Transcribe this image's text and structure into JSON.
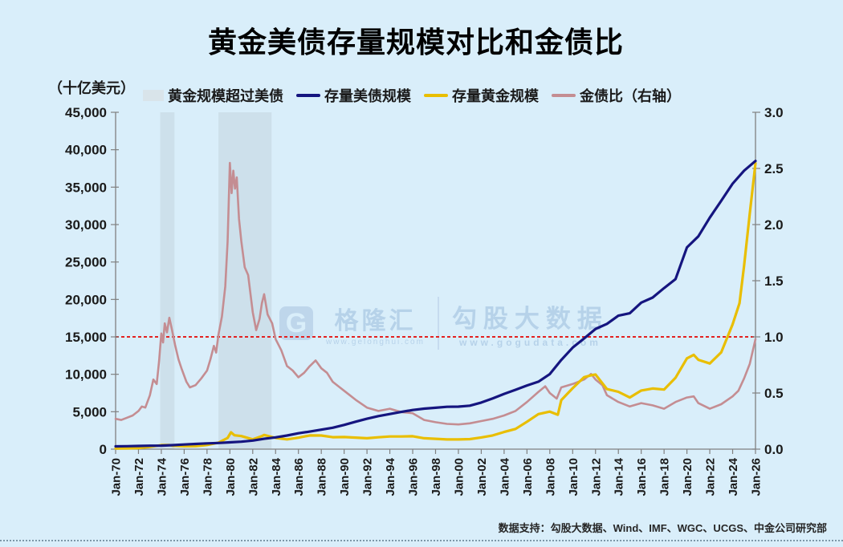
{
  "page": {
    "background": "#d9eefa",
    "title": "黄金美债存量规模对比和金债比",
    "footer": "数据支持：勾股大数据、Wind、IMF、WGC、UCGS、中金公司研究部"
  },
  "watermark": {
    "logo_letter": "G",
    "brand": "格隆汇",
    "brand_url": "www.gelonghui.com",
    "site": "勾股大数据",
    "site_url": "www.gogudata.com"
  },
  "chart_data": {
    "type": "line",
    "title": "黄金美债存量规模对比和金债比",
    "unit_label": "（十亿美元）",
    "x_range": [
      1970,
      2026
    ],
    "x_tick_step_years": 2,
    "x_tick_labels": [
      "Jan-70",
      "Jan-72",
      "Jan-74",
      "Jan-76",
      "Jan-78",
      "Jan-80",
      "Jan-82",
      "Jan-84",
      "Jan-86",
      "Jan-88",
      "Jan-90",
      "Jan-92",
      "Jan-94",
      "Jan-96",
      "Jan-98",
      "Jan-00",
      "Jan-02",
      "Jan-04",
      "Jan-06",
      "Jan-08",
      "Jan-10",
      "Jan-12",
      "Jan-14",
      "Jan-16",
      "Jan-18",
      "Jan-20",
      "Jan-22",
      "Jan-24",
      "Jan-26"
    ],
    "y_left": {
      "min": 0,
      "max": 45000,
      "step": 5000,
      "tick_labels": [
        "0",
        "5,000",
        "10,000",
        "15,000",
        "20,000",
        "25,000",
        "30,000",
        "35,000",
        "40,000",
        "45,000"
      ]
    },
    "y_right": {
      "min": 0,
      "max": 3.0,
      "step": 0.5,
      "tick_labels": [
        "0.0",
        "0.5",
        "1.0",
        "1.5",
        "2.0",
        "2.5",
        "3.0"
      ]
    },
    "grid": false,
    "legend_position": "top",
    "axis_color": "#808080",
    "tick_label_color": "#1a1a1a",
    "reference_line": {
      "axis": "right",
      "value": 1.0,
      "color": "#e32121",
      "style": "dashed"
    },
    "shaded_regions": {
      "label": "黄金规模超过美债",
      "color": "#c3d5df",
      "opacity": 0.55,
      "ranges": [
        [
          1973.9,
          1975.15
        ],
        [
          1979.0,
          1983.65
        ]
      ]
    },
    "legend": [
      {
        "label": "黄金规模超过美债",
        "type": "box",
        "color": "#d9e4ea"
      },
      {
        "label": "存量美债规模",
        "type": "line",
        "color": "#15157f"
      },
      {
        "label": "存量黄金规模",
        "type": "line",
        "color": "#e9be00"
      },
      {
        "label": "金债比（右轴）",
        "type": "line",
        "color": "#c48d92"
      }
    ],
    "series": [
      {
        "name": "金债比（右轴）",
        "axis": "right",
        "color": "#c48d92",
        "width": 2.6,
        "points": [
          [
            1970,
            0.27
          ],
          [
            1970.5,
            0.26
          ],
          [
            1971,
            0.28
          ],
          [
            1971.5,
            0.3
          ],
          [
            1972,
            0.34
          ],
          [
            1972.3,
            0.38
          ],
          [
            1972.6,
            0.37
          ],
          [
            1973,
            0.48
          ],
          [
            1973.3,
            0.62
          ],
          [
            1973.6,
            0.58
          ],
          [
            1973.8,
            0.78
          ],
          [
            1974,
            1.03
          ],
          [
            1974.15,
            0.95
          ],
          [
            1974.3,
            1.12
          ],
          [
            1974.5,
            1.04
          ],
          [
            1974.7,
            1.17
          ],
          [
            1974.9,
            1.08
          ],
          [
            1975.2,
            0.93
          ],
          [
            1975.5,
            0.8
          ],
          [
            1975.8,
            0.71
          ],
          [
            1976.2,
            0.6
          ],
          [
            1976.5,
            0.55
          ],
          [
            1977,
            0.57
          ],
          [
            1977.5,
            0.63
          ],
          [
            1978,
            0.7
          ],
          [
            1978.3,
            0.8
          ],
          [
            1978.6,
            0.92
          ],
          [
            1978.8,
            0.86
          ],
          [
            1979,
            1.02
          ],
          [
            1979.3,
            1.18
          ],
          [
            1979.6,
            1.45
          ],
          [
            1979.8,
            1.85
          ],
          [
            1980,
            2.55
          ],
          [
            1980.15,
            2.28
          ],
          [
            1980.3,
            2.48
          ],
          [
            1980.45,
            2.32
          ],
          [
            1980.6,
            2.42
          ],
          [
            1980.8,
            2.05
          ],
          [
            1981,
            1.85
          ],
          [
            1981.3,
            1.62
          ],
          [
            1981.6,
            1.55
          ],
          [
            1982,
            1.22
          ],
          [
            1982.3,
            1.06
          ],
          [
            1982.6,
            1.16
          ],
          [
            1982.8,
            1.3
          ],
          [
            1983,
            1.38
          ],
          [
            1983.3,
            1.2
          ],
          [
            1983.7,
            1.12
          ],
          [
            1984,
            0.98
          ],
          [
            1984.5,
            0.88
          ],
          [
            1985,
            0.74
          ],
          [
            1985.5,
            0.7
          ],
          [
            1986,
            0.64
          ],
          [
            1986.5,
            0.68
          ],
          [
            1987,
            0.74
          ],
          [
            1987.5,
            0.79
          ],
          [
            1988,
            0.72
          ],
          [
            1988.5,
            0.68
          ],
          [
            1989,
            0.6
          ],
          [
            1989.5,
            0.56
          ],
          [
            1990,
            0.52
          ],
          [
            1990.5,
            0.48
          ],
          [
            1991,
            0.44
          ],
          [
            1992,
            0.37
          ],
          [
            1993,
            0.34
          ],
          [
            1994,
            0.36
          ],
          [
            1995,
            0.33
          ],
          [
            1996,
            0.32
          ],
          [
            1997,
            0.26
          ],
          [
            1998,
            0.24
          ],
          [
            1999,
            0.225
          ],
          [
            2000,
            0.22
          ],
          [
            2001,
            0.23
          ],
          [
            2002,
            0.25
          ],
          [
            2003,
            0.27
          ],
          [
            2004,
            0.3
          ],
          [
            2005,
            0.34
          ],
          [
            2006,
            0.42
          ],
          [
            2007,
            0.51
          ],
          [
            2007.6,
            0.56
          ],
          [
            2008,
            0.5
          ],
          [
            2008.6,
            0.45
          ],
          [
            2009,
            0.55
          ],
          [
            2010,
            0.58
          ],
          [
            2011,
            0.62
          ],
          [
            2011.6,
            0.67
          ],
          [
            2012,
            0.62
          ],
          [
            2012.6,
            0.57
          ],
          [
            2013,
            0.48
          ],
          [
            2014,
            0.42
          ],
          [
            2015,
            0.38
          ],
          [
            2016,
            0.41
          ],
          [
            2017,
            0.39
          ],
          [
            2018,
            0.36
          ],
          [
            2019,
            0.42
          ],
          [
            2020,
            0.46
          ],
          [
            2020.6,
            0.47
          ],
          [
            2021,
            0.41
          ],
          [
            2022,
            0.36
          ],
          [
            2023,
            0.4
          ],
          [
            2024,
            0.47
          ],
          [
            2024.5,
            0.52
          ],
          [
            2025,
            0.63
          ],
          [
            2025.5,
            0.76
          ],
          [
            2026,
            0.98
          ]
        ]
      },
      {
        "name": "存量黄金规模",
        "axis": "left",
        "color": "#e9be00",
        "width": 3.2,
        "points": [
          [
            1970,
            100
          ],
          [
            1971,
            110
          ],
          [
            1972,
            150
          ],
          [
            1973,
            300
          ],
          [
            1974,
            550
          ],
          [
            1974.7,
            560
          ],
          [
            1975,
            450
          ],
          [
            1976,
            385
          ],
          [
            1977,
            400
          ],
          [
            1978,
            560
          ],
          [
            1979,
            870
          ],
          [
            1979.8,
            1500
          ],
          [
            1980.1,
            2250
          ],
          [
            1980.4,
            1850
          ],
          [
            1981,
            1750
          ],
          [
            1982,
            1310
          ],
          [
            1982.8,
            1750
          ],
          [
            1983,
            1900
          ],
          [
            1984,
            1500
          ],
          [
            1985,
            1310
          ],
          [
            1986,
            1530
          ],
          [
            1987,
            1830
          ],
          [
            1988,
            1820
          ],
          [
            1989,
            1600
          ],
          [
            1990,
            1620
          ],
          [
            1991,
            1540
          ],
          [
            1992,
            1460
          ],
          [
            1993,
            1590
          ],
          [
            1994,
            1690
          ],
          [
            1995,
            1690
          ],
          [
            1996,
            1720
          ],
          [
            1997,
            1460
          ],
          [
            1998,
            1380
          ],
          [
            1999,
            1300
          ],
          [
            2000,
            1300
          ],
          [
            2001,
            1340
          ],
          [
            2002,
            1560
          ],
          [
            2003,
            1830
          ],
          [
            2004,
            2290
          ],
          [
            2005,
            2700
          ],
          [
            2006,
            3660
          ],
          [
            2007,
            4680
          ],
          [
            2008,
            5010
          ],
          [
            2008.7,
            4600
          ],
          [
            2009,
            6550
          ],
          [
            2010,
            8140
          ],
          [
            2011,
            9610
          ],
          [
            2011.7,
            9900
          ],
          [
            2012,
            9960
          ],
          [
            2013,
            8030
          ],
          [
            2014,
            7660
          ],
          [
            2015,
            6900
          ],
          [
            2016,
            7830
          ],
          [
            2017,
            8100
          ],
          [
            2018,
            7960
          ],
          [
            2019,
            9540
          ],
          [
            2020,
            12130
          ],
          [
            2020.6,
            12600
          ],
          [
            2021,
            11940
          ],
          [
            2022,
            11440
          ],
          [
            2023,
            12930
          ],
          [
            2024,
            16670
          ],
          [
            2024.6,
            19500
          ],
          [
            2025,
            24500
          ],
          [
            2025.5,
            31500
          ],
          [
            2026,
            38200
          ]
        ]
      },
      {
        "name": "存量美债规模",
        "axis": "left",
        "color": "#15157f",
        "width": 3.2,
        "points": [
          [
            1970,
            370
          ],
          [
            1971,
            398
          ],
          [
            1972,
            427
          ],
          [
            1973,
            458
          ],
          [
            1974,
            475
          ],
          [
            1975,
            533
          ],
          [
            1976,
            620
          ],
          [
            1977,
            699
          ],
          [
            1978,
            772
          ],
          [
            1979,
            827
          ],
          [
            1980,
            908
          ],
          [
            1981,
            998
          ],
          [
            1982,
            1142
          ],
          [
            1983,
            1377
          ],
          [
            1984,
            1572
          ],
          [
            1985,
            1823
          ],
          [
            1986,
            2125
          ],
          [
            1987,
            2350
          ],
          [
            1988,
            2602
          ],
          [
            1989,
            2857
          ],
          [
            1990,
            3233
          ],
          [
            1991,
            3665
          ],
          [
            1992,
            4065
          ],
          [
            1993,
            4411
          ],
          [
            1994,
            4693
          ],
          [
            1995,
            4974
          ],
          [
            1996,
            5225
          ],
          [
            1997,
            5413
          ],
          [
            1998,
            5526
          ],
          [
            1999,
            5656
          ],
          [
            2000,
            5674
          ],
          [
            2001,
            5807
          ],
          [
            2002,
            6228
          ],
          [
            2003,
            6783
          ],
          [
            2004,
            7379
          ],
          [
            2005,
            7933
          ],
          [
            2006,
            8507
          ],
          [
            2007,
            9008
          ],
          [
            2008,
            10025
          ],
          [
            2009,
            11910
          ],
          [
            2010,
            13562
          ],
          [
            2011,
            14790
          ],
          [
            2012,
            16066
          ],
          [
            2013,
            16738
          ],
          [
            2014,
            17824
          ],
          [
            2015,
            18151
          ],
          [
            2016,
            19573
          ],
          [
            2017,
            20245
          ],
          [
            2018,
            21516
          ],
          [
            2019,
            22719
          ],
          [
            2020,
            26945
          ],
          [
            2021,
            28429
          ],
          [
            2022,
            30928
          ],
          [
            2023,
            33167
          ],
          [
            2024,
            35460
          ],
          [
            2025,
            37200
          ],
          [
            2026,
            38500
          ]
        ]
      }
    ]
  }
}
